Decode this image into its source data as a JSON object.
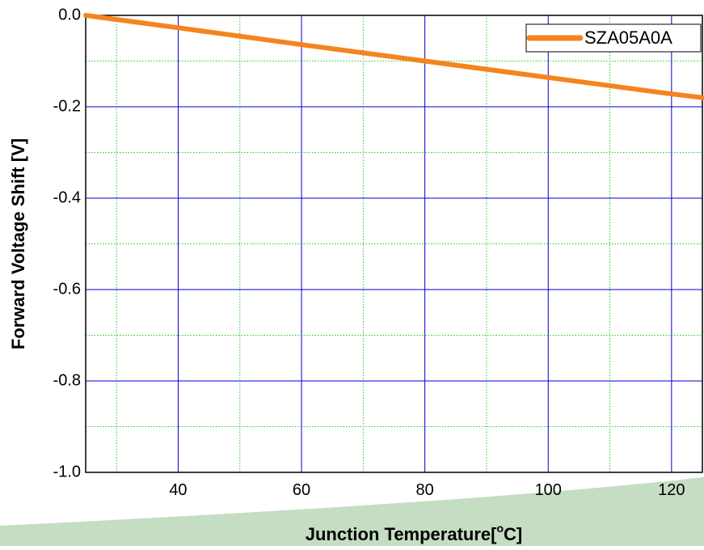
{
  "chart_data": {
    "type": "line",
    "title": "",
    "xlabel": "Junction Temperature[",
    "xlabel_sup": "o",
    "xlabel_tail": "C]",
    "ylabel": "Forward Voltage Shift [V]",
    "xlim": [
      25,
      125
    ],
    "ylim": [
      -1.0,
      0.0
    ],
    "x_major_ticks": [
      40,
      60,
      80,
      100,
      120
    ],
    "x_tick_labels": [
      "40",
      "60",
      "80",
      "100",
      "120"
    ],
    "x_minor_grid": [
      30,
      50,
      70,
      90,
      110
    ],
    "y_major_ticks": [
      0.0,
      -0.2,
      -0.4,
      -0.6,
      -0.8,
      -1.0
    ],
    "y_tick_labels": [
      "0.0",
      "-0.2",
      "-0.4",
      "-0.6",
      "-0.8",
      "-1.0"
    ],
    "y_minor_grid": [
      -0.1,
      -0.3,
      -0.5,
      -0.7,
      -0.9
    ],
    "grid": true,
    "legend_position": "top-right",
    "series": [
      {
        "name": "SZA05A0A",
        "color": "#f5841f",
        "x": [
          25,
          40,
          60,
          80,
          100,
          120,
          125
        ],
        "y": [
          0.0,
          -0.027,
          -0.064,
          -0.1,
          -0.136,
          -0.172,
          -0.18
        ]
      }
    ],
    "colors": {
      "major_grid": "#0000cc",
      "minor_grid": "#22cc22",
      "axis": "#000000",
      "background_band": "#c5ddc3"
    }
  }
}
